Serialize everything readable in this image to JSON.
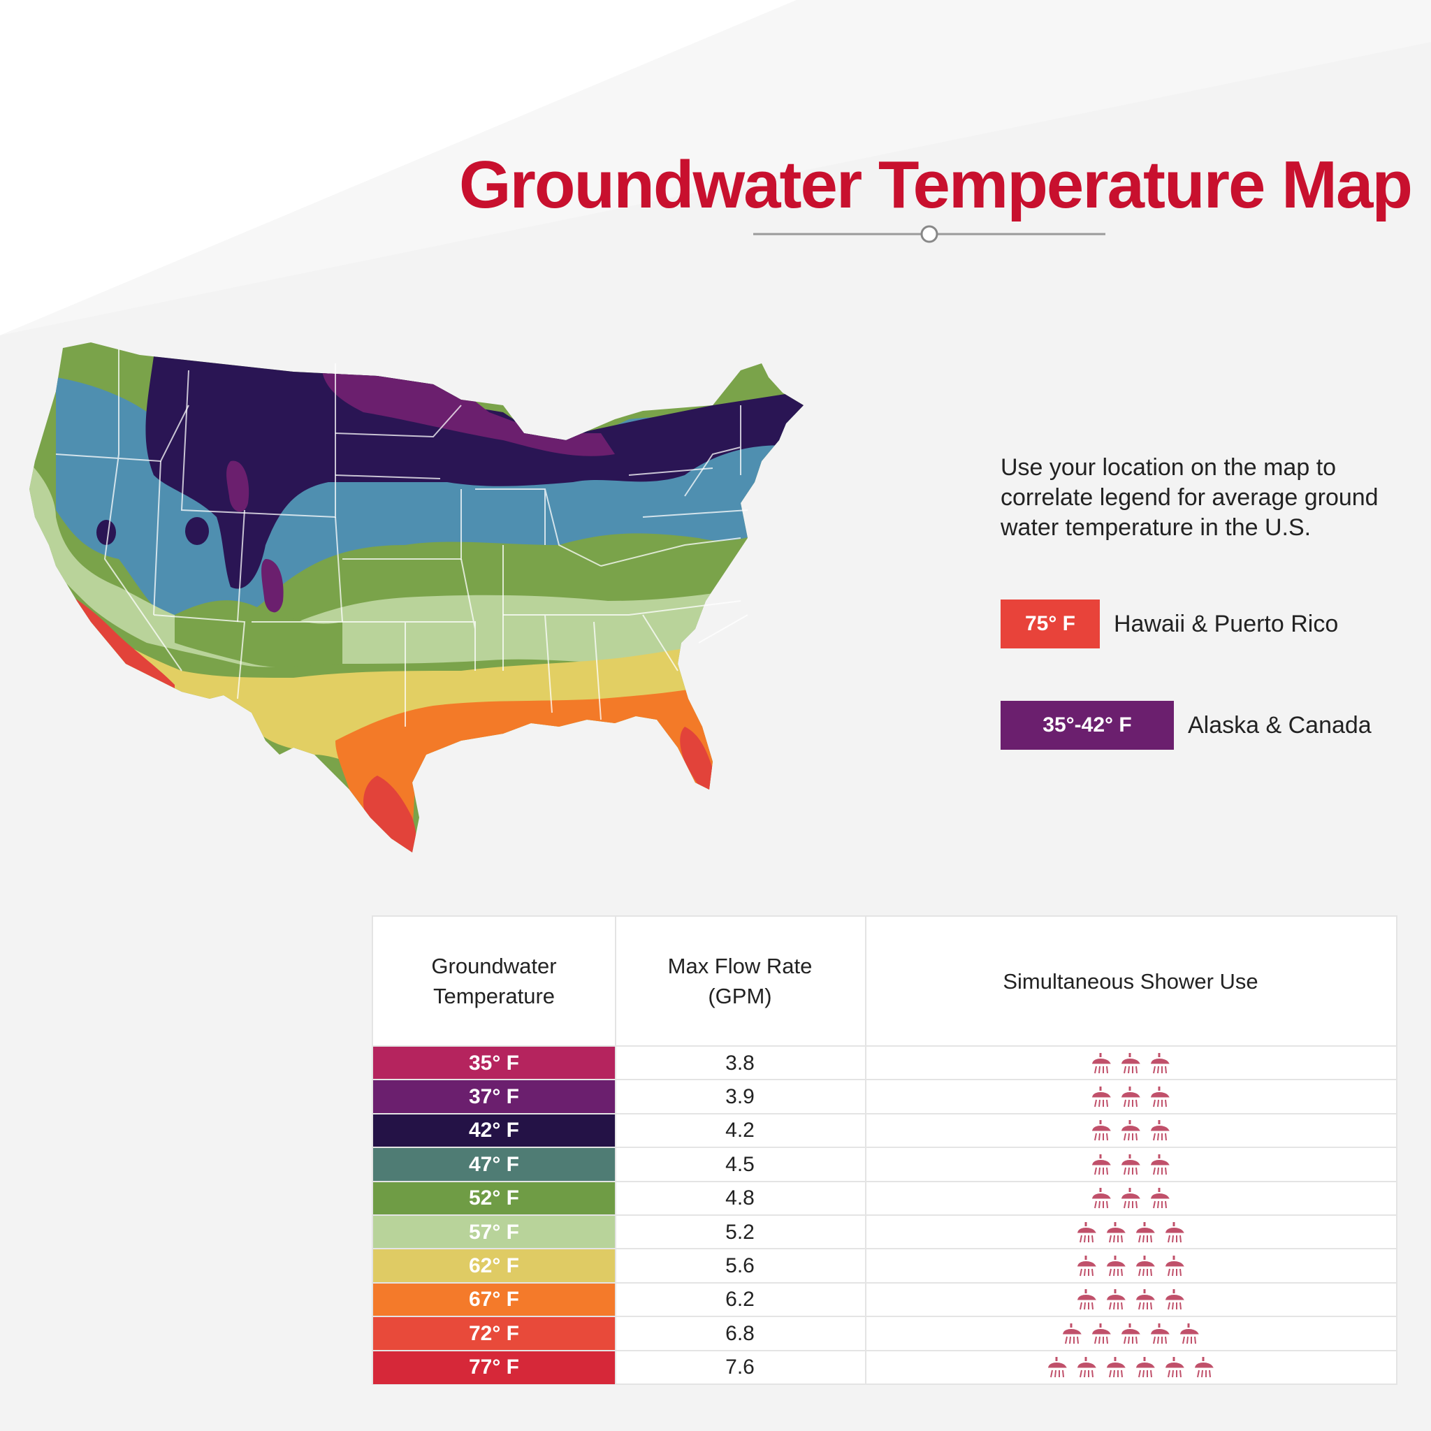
{
  "title": "Groundwater Temperature Map",
  "description": "Use your location on the map to correlate legend for average ground water temperature  in the U.S.",
  "legend": [
    {
      "label": "75° F",
      "place": "Hawaii & Puerto Rico",
      "color": "#e8433a"
    },
    {
      "label": "35°-42° F",
      "place": "Alaska & Canada",
      "color": "#6b1f6e"
    }
  ],
  "zone_colors": {
    "z35": "#6b1f6e",
    "z42": "#2a1554",
    "z47": "#4f8fb0",
    "z52": "#7aa34a",
    "z57": "#b9d39a",
    "z62": "#e2cf63",
    "z67": "#f37a28",
    "z72": "#e2433a"
  },
  "table": {
    "headers": [
      "Groundwater Temperature",
      "Max Flow Rate (GPM)",
      "Simultaneous Shower Use"
    ],
    "rows": [
      {
        "temp": "35° F",
        "flow": "3.8",
        "showers": 3,
        "color": "#b5245e"
      },
      {
        "temp": "37° F",
        "flow": "3.9",
        "showers": 3,
        "color": "#6b1f6e"
      },
      {
        "temp": "42° F",
        "flow": "4.2",
        "showers": 3,
        "color": "#241246"
      },
      {
        "temp": "47° F",
        "flow": "4.5",
        "showers": 3,
        "color": "#4f7c74"
      },
      {
        "temp": "52° F",
        "flow": "4.8",
        "showers": 3,
        "color": "#6f9c45"
      },
      {
        "temp": "57° F",
        "flow": "5.2",
        "showers": 4,
        "color": "#b8d39a"
      },
      {
        "temp": "62° F",
        "flow": "5.6",
        "showers": 4,
        "color": "#dfcb64"
      },
      {
        "temp": "67° F",
        "flow": "6.2",
        "showers": 4,
        "color": "#f47a2a"
      },
      {
        "temp": "72° F",
        "flow": "6.8",
        "showers": 5,
        "color": "#e84a3a"
      },
      {
        "temp": "77° F",
        "flow": "7.6",
        "showers": 6,
        "color": "#d62839"
      }
    ]
  },
  "icon_color": "#c0506a"
}
